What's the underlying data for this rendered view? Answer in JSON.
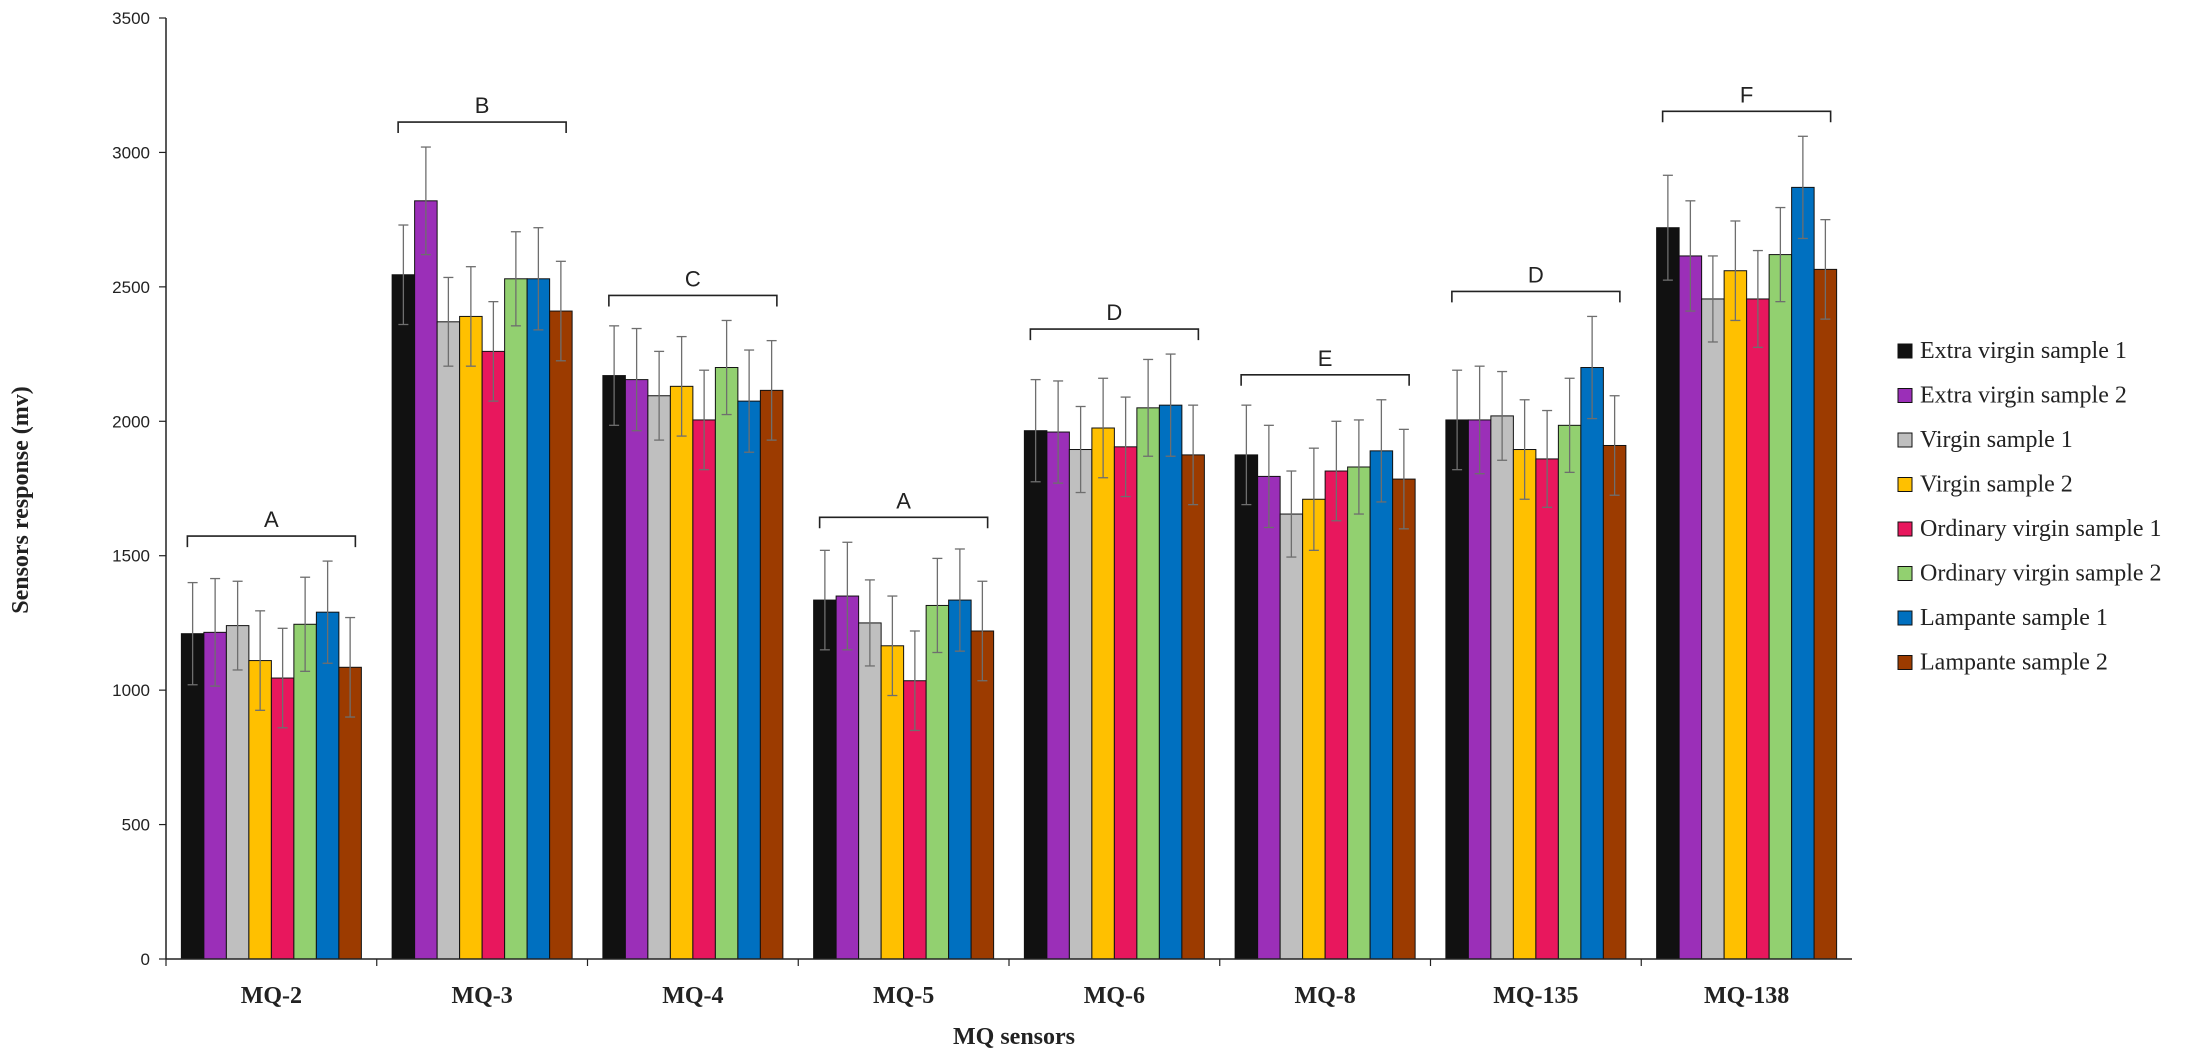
{
  "chart_data": {
    "type": "bar",
    "title": "",
    "xlabel": "MQ sensors",
    "ylabel": "Sensors response (mv)",
    "ylim": [
      0,
      3500
    ],
    "yticks": [
      0,
      500,
      1000,
      1500,
      2000,
      2500,
      3000,
      3500
    ],
    "grid": false,
    "legend_position": "right",
    "categories": [
      "MQ-2",
      "MQ-3",
      "MQ-4",
      "MQ-5",
      "MQ-6",
      "MQ-8",
      "MQ-135",
      "MQ-138"
    ],
    "group_labels": [
      "A",
      "B",
      "C",
      "A",
      "D",
      "E",
      "D",
      "F"
    ],
    "series": [
      {
        "name": "Extra virgin sample 1",
        "color": "#111111",
        "values": [
          1210,
          2545,
          2170,
          1335,
          1965,
          1875,
          2005,
          2720
        ],
        "errors": [
          190,
          185,
          185,
          185,
          190,
          185,
          185,
          195
        ]
      },
      {
        "name": "Extra virgin sample 2",
        "color": "#9B2FB8",
        "values": [
          1215,
          2820,
          2155,
          1350,
          1960,
          1795,
          2005,
          2615
        ],
        "errors": [
          200,
          200,
          190,
          200,
          190,
          190,
          200,
          205
        ]
      },
      {
        "name": "Virgin sample 1",
        "color": "#BFBFBF",
        "values": [
          1240,
          2370,
          2095,
          1250,
          1895,
          1655,
          2020,
          2455
        ],
        "errors": [
          165,
          165,
          165,
          160,
          160,
          160,
          165,
          160
        ]
      },
      {
        "name": "Virgin sample 2",
        "color": "#FFC000",
        "values": [
          1110,
          2390,
          2130,
          1165,
          1975,
          1710,
          1895,
          2560
        ],
        "errors": [
          185,
          185,
          185,
          185,
          185,
          190,
          185,
          185
        ]
      },
      {
        "name": "Ordinary virgin sample 1",
        "color": "#E8175D",
        "values": [
          1045,
          2260,
          2005,
          1035,
          1905,
          1815,
          1860,
          2455
        ],
        "errors": [
          185,
          185,
          185,
          185,
          185,
          185,
          180,
          180
        ]
      },
      {
        "name": "Ordinary virgin sample 2",
        "color": "#92D070",
        "values": [
          1245,
          2530,
          2200,
          1315,
          2050,
          1830,
          1985,
          2620
        ],
        "errors": [
          175,
          175,
          175,
          175,
          180,
          175,
          175,
          175
        ]
      },
      {
        "name": "Lampante sample 1",
        "color": "#0070C0",
        "values": [
          1290,
          2530,
          2075,
          1335,
          2060,
          1890,
          2200,
          2870
        ],
        "errors": [
          190,
          190,
          190,
          190,
          190,
          190,
          190,
          190
        ]
      },
      {
        "name": "Lampante sample 2",
        "color": "#9C3B00",
        "values": [
          1085,
          2410,
          2115,
          1220,
          1875,
          1785,
          1910,
          2565
        ],
        "errors": [
          185,
          185,
          185,
          185,
          185,
          185,
          185,
          185
        ]
      }
    ]
  }
}
